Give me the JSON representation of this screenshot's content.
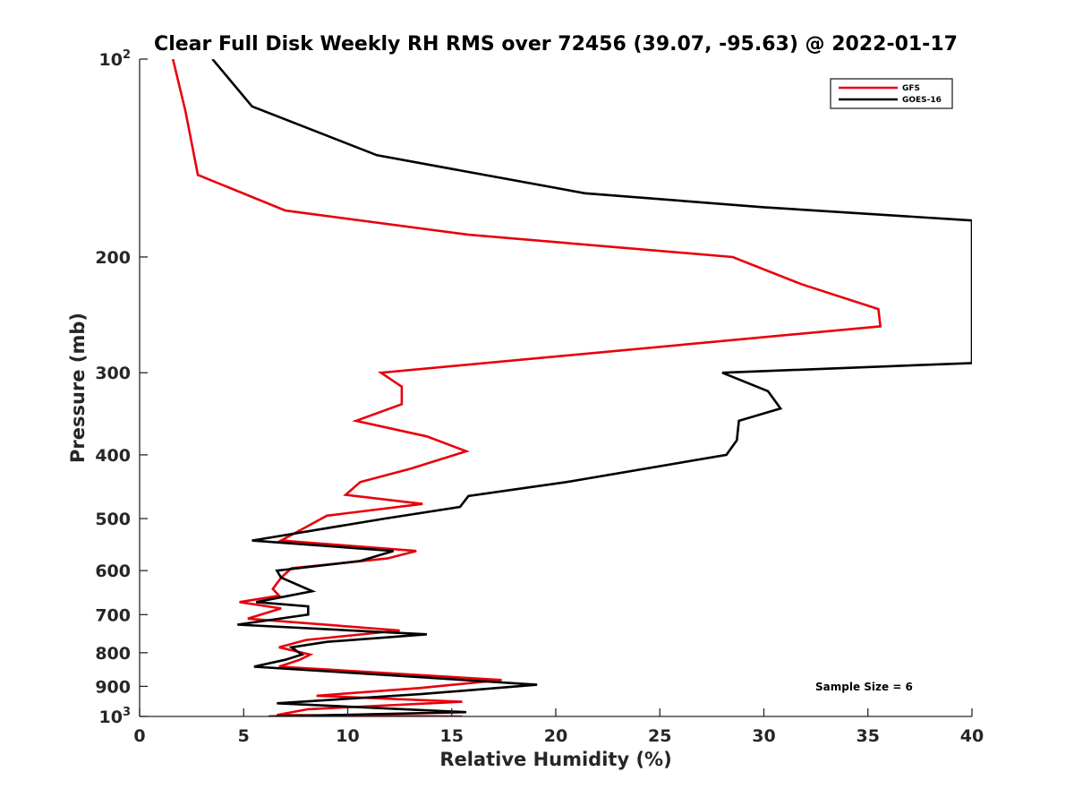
{
  "chart_data": {
    "type": "line",
    "title": "Clear Full Disk Weekly RH RMS over 72456 (39.07, -95.63) @ 2022-01-17",
    "xlabel": "Relative Humidity (%)",
    "ylabel": "Pressure (mb)",
    "xlim": [
      0,
      40
    ],
    "ylim": [
      100,
      1000
    ],
    "y_scale": "log",
    "y_reversed": true,
    "x_ticks": [
      "0",
      "5",
      "10",
      "15",
      "20",
      "25",
      "30",
      "35",
      "40"
    ],
    "y_ticks": [
      {
        "value": 100,
        "base": "10",
        "exp": "2"
      },
      {
        "value": 200,
        "label": "200"
      },
      {
        "value": 300,
        "label": "300"
      },
      {
        "value": 400,
        "label": "400"
      },
      {
        "value": 500,
        "label": "500"
      },
      {
        "value": 600,
        "label": "600"
      },
      {
        "value": 700,
        "label": "700"
      },
      {
        "value": 800,
        "label": "800"
      },
      {
        "value": 900,
        "label": "900"
      },
      {
        "value": 1000,
        "base": "10",
        "exp": "3"
      }
    ],
    "legend_position": "top-right",
    "annotation": "Sample Size = 6",
    "series": [
      {
        "name": "GFS",
        "color": "#e8000b",
        "points": [
          [
            1.6,
            100
          ],
          [
            2.2,
            120
          ],
          [
            2.8,
            150
          ],
          [
            7.0,
            170
          ],
          [
            15.8,
            185
          ],
          [
            28.5,
            200
          ],
          [
            31.8,
            220
          ],
          [
            35.5,
            240
          ],
          [
            35.6,
            255
          ],
          [
            11.6,
            300
          ],
          [
            12.6,
            315
          ],
          [
            12.6,
            335
          ],
          [
            10.4,
            355
          ],
          [
            13.8,
            375
          ],
          [
            15.7,
            395
          ],
          [
            13.0,
            420
          ],
          [
            10.6,
            440
          ],
          [
            9.9,
            460
          ],
          [
            13.6,
            475
          ],
          [
            9.0,
            495
          ],
          [
            8.0,
            515
          ],
          [
            6.8,
            540
          ],
          [
            13.3,
            560
          ],
          [
            11.9,
            575
          ],
          [
            7.3,
            595
          ],
          [
            6.8,
            615
          ],
          [
            6.4,
            640
          ],
          [
            6.7,
            655
          ],
          [
            4.8,
            670
          ],
          [
            6.8,
            685
          ],
          [
            5.2,
            710
          ],
          [
            12.5,
            740
          ],
          [
            8.0,
            765
          ],
          [
            6.7,
            785
          ],
          [
            8.2,
            805
          ],
          [
            7.7,
            820
          ],
          [
            6.7,
            840
          ],
          [
            17.4,
            880
          ],
          [
            13.5,
            905
          ],
          [
            8.5,
            930
          ],
          [
            15.5,
            950
          ],
          [
            8.1,
            975
          ],
          [
            6.6,
            995
          ],
          [
            15.5,
            1000
          ]
        ]
      },
      {
        "name": "GOES-16",
        "color": "#000000",
        "points": [
          [
            3.5,
            100
          ],
          [
            5.4,
            118
          ],
          [
            11.4,
            140
          ],
          [
            21.4,
            160
          ],
          [
            30.0,
            168
          ],
          [
            40.0,
            176
          ],
          [
            40.0,
            290
          ],
          [
            28.0,
            300
          ],
          [
            30.2,
            320
          ],
          [
            30.8,
            340
          ],
          [
            28.8,
            355
          ],
          [
            28.7,
            380
          ],
          [
            28.2,
            400
          ],
          [
            20.5,
            440
          ],
          [
            15.8,
            462
          ],
          [
            15.4,
            480
          ],
          [
            11.8,
            500
          ],
          [
            5.4,
            540
          ],
          [
            12.2,
            560
          ],
          [
            10.6,
            580
          ],
          [
            6.6,
            600
          ],
          [
            6.8,
            615
          ],
          [
            8.3,
            645
          ],
          [
            5.6,
            670
          ],
          [
            8.1,
            680
          ],
          [
            8.1,
            700
          ],
          [
            4.7,
            725
          ],
          [
            13.8,
            750
          ],
          [
            9.0,
            770
          ],
          [
            7.3,
            785
          ],
          [
            7.8,
            805
          ],
          [
            7.0,
            820
          ],
          [
            5.5,
            840
          ],
          [
            13.1,
            870
          ],
          [
            19.1,
            895
          ],
          [
            13.5,
            925
          ],
          [
            6.6,
            955
          ],
          [
            15.7,
            985
          ],
          [
            6.2,
            1000
          ]
        ]
      }
    ]
  }
}
